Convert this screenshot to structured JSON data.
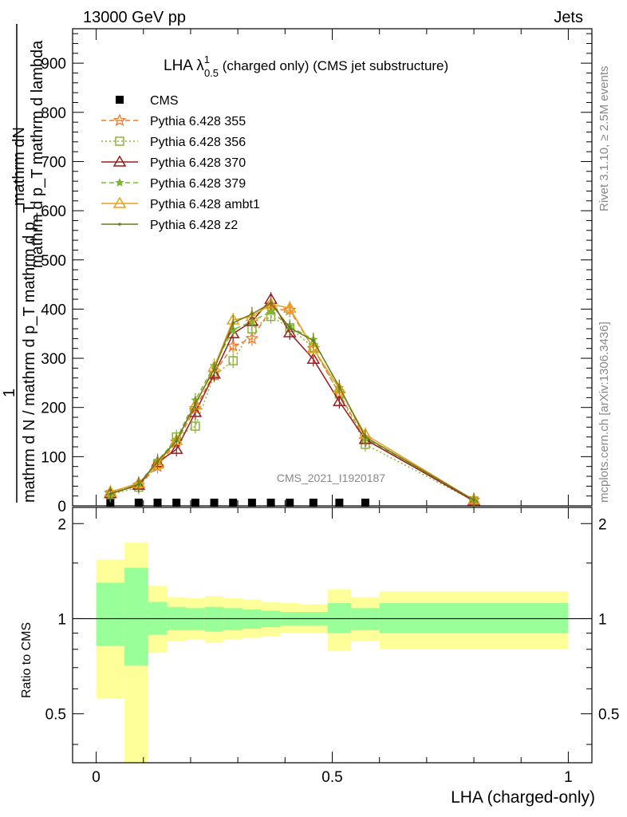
{
  "header": {
    "left": "13000 GeV pp",
    "right": "Jets"
  },
  "side_labels": {
    "rivet": "Rivet 3.1.10, ≥ 2.5M events",
    "mcplots": "mcplots.cern.ch [arXiv:1306.3436]"
  },
  "watermark": "CMS_2021_I1920187",
  "colors": {
    "CMS": "#000000",
    "355": "#f07b2b",
    "356": "#8db33a",
    "370": "#9b1c1c",
    "379": "#7ab830",
    "ambt1": "#e8a019",
    "z2": "#6b7a1e",
    "band_inner": "#99ff99",
    "band_outer": "#ffff99"
  },
  "icons": {
    "CMS": "filled-square",
    "355": "open-star",
    "356": "open-square",
    "370": "open-triangle",
    "379": "filled-star",
    "ambt1": "open-triangle",
    "z2": "small-dot"
  },
  "chart_data": [
    {
      "type": "line",
      "title": "LHA λ",
      "title_sup": "1",
      "title_sub": "0.5",
      "title_suffix": " (charged only) (CMS jet substructure)",
      "ylabel_numerator": "mathrm dN",
      "ylabel_numerator_2": "mathrm d p_T mathrm d lambda",
      "ylabel_one": "1",
      "ylabel_denominator": "mathrm d N / mathrm d p_T mathrm d p_T",
      "xlim": [
        -0.05,
        1.05
      ],
      "ylim": [
        0,
        970
      ],
      "yticks": [
        0,
        100,
        200,
        300,
        400,
        500,
        600,
        700,
        800,
        900
      ],
      "legend_position": "top-left",
      "series": [
        {
          "name": "CMS",
          "key": "CMS",
          "style": "markers",
          "x": [
            0.03,
            0.09,
            0.13,
            0.17,
            0.21,
            0.25,
            0.29,
            0.33,
            0.37,
            0.41,
            0.46,
            0.515,
            0.57
          ],
          "y": [
            1,
            1,
            1,
            1,
            1,
            1,
            1,
            1,
            1,
            1,
            1,
            1,
            1
          ]
        },
        {
          "name": "Pythia 6.428 355",
          "key": "355",
          "style": "dashed",
          "x": [
            0.03,
            0.09,
            0.13,
            0.17,
            0.21,
            0.25,
            0.29,
            0.33,
            0.37,
            0.41,
            0.46,
            0.515,
            0.57,
            0.8
          ],
          "y": [
            26,
            42,
            80,
            130,
            198,
            270,
            325,
            340,
            400,
            398,
            320,
            228,
            135,
            12
          ]
        },
        {
          "name": "Pythia 6.428 356",
          "key": "356",
          "style": "dotted",
          "x": [
            0.03,
            0.09,
            0.13,
            0.17,
            0.21,
            0.25,
            0.29,
            0.33,
            0.37,
            0.41,
            0.46,
            0.515,
            0.57,
            0.8
          ],
          "y": [
            23,
            38,
            85,
            140,
            162,
            265,
            295,
            360,
            385,
            362,
            322,
            228,
            125,
            10
          ]
        },
        {
          "name": "Pythia 6.428 370",
          "key": "370",
          "style": "solid",
          "x": [
            0.03,
            0.09,
            0.13,
            0.17,
            0.21,
            0.25,
            0.29,
            0.33,
            0.37,
            0.41,
            0.46,
            0.515,
            0.57,
            0.8
          ],
          "y": [
            25,
            42,
            88,
            115,
            190,
            268,
            350,
            375,
            420,
            352,
            298,
            212,
            135,
            10
          ]
        },
        {
          "name": "Pythia 6.428 379",
          "key": "379",
          "style": "dashed",
          "x": [
            0.03,
            0.09,
            0.13,
            0.17,
            0.21,
            0.25,
            0.29,
            0.33,
            0.37,
            0.41,
            0.46,
            0.515,
            0.57,
            0.8
          ],
          "y": [
            22,
            45,
            92,
            135,
            215,
            285,
            358,
            375,
            395,
            365,
            338,
            240,
            138,
            12
          ]
        },
        {
          "name": "Pythia 6.428 ambt1",
          "key": "ambt1",
          "style": "solid",
          "x": [
            0.03,
            0.09,
            0.13,
            0.17,
            0.21,
            0.25,
            0.29,
            0.33,
            0.37,
            0.41,
            0.46,
            0.515,
            0.57,
            0.8
          ],
          "y": [
            28,
            46,
            85,
            133,
            205,
            282,
            378,
            385,
            410,
            402,
            320,
            238,
            145,
            12
          ]
        },
        {
          "name": "Pythia 6.428 z2",
          "key": "z2",
          "style": "solid",
          "x": [
            0.03,
            0.09,
            0.13,
            0.17,
            0.21,
            0.25,
            0.29,
            0.33,
            0.37,
            0.41,
            0.46,
            0.515,
            0.57,
            0.8
          ],
          "y": [
            24,
            44,
            90,
            132,
            208,
            278,
            372,
            390,
            412,
            362,
            336,
            242,
            140,
            12
          ]
        }
      ]
    },
    {
      "type": "area",
      "xlabel": "LHA (charged-only)",
      "ylabel": "Ratio to CMS",
      "xlim": [
        -0.05,
        1.05
      ],
      "ylim": [
        0.35,
        2.25
      ],
      "yticks": [
        0.5,
        1,
        2
      ],
      "ytick_labels": [
        "0.5",
        "1",
        "2"
      ],
      "xticks": [
        0,
        0.5,
        1
      ],
      "xtick_labels": [
        "0",
        "0.5",
        "1"
      ],
      "reference_line": 1,
      "bins": [
        {
          "lo": 0.0,
          "hi": 0.06,
          "in_lo": 0.82,
          "in_hi": 1.3,
          "out_lo": 0.56,
          "out_hi": 1.54
        },
        {
          "lo": 0.06,
          "hi": 0.11,
          "in_lo": 0.71,
          "in_hi": 1.45,
          "out_lo": 0.35,
          "out_hi": 1.74
        },
        {
          "lo": 0.11,
          "hi": 0.15,
          "in_lo": 0.89,
          "in_hi": 1.13,
          "out_lo": 0.78,
          "out_hi": 1.27
        },
        {
          "lo": 0.15,
          "hi": 0.19,
          "in_lo": 0.92,
          "in_hi": 1.09,
          "out_lo": 0.85,
          "out_hi": 1.17
        },
        {
          "lo": 0.19,
          "hi": 0.23,
          "in_lo": 0.92,
          "in_hi": 1.08,
          "out_lo": 0.86,
          "out_hi": 1.16
        },
        {
          "lo": 0.23,
          "hi": 0.27,
          "in_lo": 0.91,
          "in_hi": 1.09,
          "out_lo": 0.84,
          "out_hi": 1.18
        },
        {
          "lo": 0.27,
          "hi": 0.31,
          "in_lo": 0.92,
          "in_hi": 1.08,
          "out_lo": 0.86,
          "out_hi": 1.16
        },
        {
          "lo": 0.31,
          "hi": 0.35,
          "in_lo": 0.93,
          "in_hi": 1.07,
          "out_lo": 0.87,
          "out_hi": 1.15
        },
        {
          "lo": 0.35,
          "hi": 0.39,
          "in_lo": 0.94,
          "in_hi": 1.06,
          "out_lo": 0.88,
          "out_hi": 1.13
        },
        {
          "lo": 0.39,
          "hi": 0.43,
          "in_lo": 0.95,
          "in_hi": 1.05,
          "out_lo": 0.9,
          "out_hi": 1.12
        },
        {
          "lo": 0.43,
          "hi": 0.49,
          "in_lo": 0.95,
          "in_hi": 1.05,
          "out_lo": 0.9,
          "out_hi": 1.11
        },
        {
          "lo": 0.49,
          "hi": 0.54,
          "in_lo": 0.9,
          "in_hi": 1.12,
          "out_lo": 0.79,
          "out_hi": 1.24
        },
        {
          "lo": 0.54,
          "hi": 0.6,
          "in_lo": 0.92,
          "in_hi": 1.08,
          "out_lo": 0.85,
          "out_hi": 1.17
        },
        {
          "lo": 0.6,
          "hi": 1.0,
          "in_lo": 0.9,
          "in_hi": 1.12,
          "out_lo": 0.8,
          "out_hi": 1.22
        }
      ]
    }
  ]
}
